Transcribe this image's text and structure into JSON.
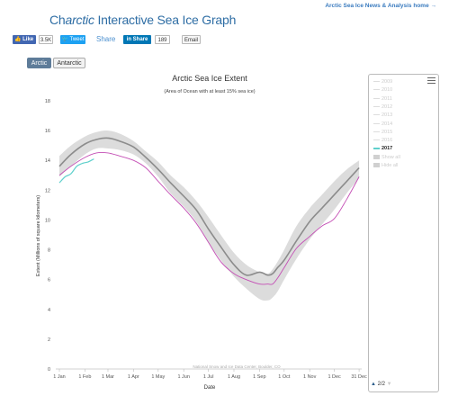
{
  "header": {
    "top_link": "Arctic Sea Ice News & Analysis home →",
    "title_prefix": "Ch",
    "title_italic": "arctic",
    "title_suffix": " Interactive Sea Ice Graph"
  },
  "social": {
    "fb_like": "👍 Like",
    "fb_count": "3.5K",
    "tweet": "🐦 Tweet",
    "share_text": "Share",
    "linkedin": "in Share",
    "linkedin_count": "189",
    "email": "Email"
  },
  "tabs": [
    {
      "label": "Arctic",
      "active": true
    },
    {
      "label": "Antarctic",
      "active": false
    }
  ],
  "legend": {
    "items": [
      "2009",
      "2010",
      "2011",
      "2012",
      "2013",
      "2014",
      "2015",
      "2016",
      "2017"
    ],
    "active": "2017",
    "show_all": "Show all",
    "hide_all": "Hide all",
    "pager": "2/2"
  },
  "chart_data": {
    "type": "line",
    "title": "Arctic Sea Ice Extent",
    "subtitle": "(Area of Ocean with at least 15% sea ice)",
    "xlabel": "Date",
    "ylabel": "Extent (Millions of square kilometers)",
    "credit": "National Snow and Ice Data Center, Boulder, CO",
    "ylim": [
      0,
      18
    ],
    "yticks": [
      0,
      2,
      4,
      6,
      8,
      10,
      12,
      14,
      16,
      18
    ],
    "xlim": [
      1,
      366
    ],
    "xticks": [
      {
        "day": 1,
        "label": "1 Jan"
      },
      {
        "day": 32,
        "label": "1 Feb"
      },
      {
        "day": 60,
        "label": "1 Mar"
      },
      {
        "day": 91,
        "label": "1 Apr"
      },
      {
        "day": 121,
        "label": "1 May"
      },
      {
        "day": 152,
        "label": "1 Jun"
      },
      {
        "day": 182,
        "label": "1 Jul"
      },
      {
        "day": 213,
        "label": "1 Aug"
      },
      {
        "day": 244,
        "label": "1 Sep"
      },
      {
        "day": 274,
        "label": "1 Oct"
      },
      {
        "day": 305,
        "label": "1 Nov"
      },
      {
        "day": 335,
        "label": "1 Dec"
      },
      {
        "day": 365,
        "label": "31 Dec"
      }
    ],
    "grid": false,
    "colors": {
      "median": "#8c8c8c",
      "band": "#dcdcdc",
      "year_2016": "#c44fb5",
      "year_2017": "#5fd0cc"
    },
    "band": {
      "x": [
        1,
        15,
        32,
        46,
        60,
        74,
        91,
        106,
        121,
        136,
        152,
        167,
        182,
        197,
        213,
        228,
        244,
        254,
        260,
        266,
        274,
        289,
        305,
        320,
        335,
        350,
        365
      ],
      "upper": [
        14.3,
        15.0,
        15.6,
        15.9,
        16.0,
        15.8,
        15.3,
        14.6,
        13.9,
        13.0,
        12.2,
        11.3,
        10.2,
        9.0,
        7.8,
        7.0,
        6.5,
        6.4,
        6.7,
        7.2,
        8.0,
        9.6,
        10.8,
        11.7,
        12.6,
        13.4,
        14.0
      ],
      "lower": [
        12.9,
        13.6,
        14.4,
        14.8,
        14.8,
        14.7,
        14.4,
        13.8,
        12.9,
        11.8,
        10.9,
        9.9,
        8.5,
        7.3,
        6.2,
        5.4,
        4.7,
        4.6,
        4.8,
        5.2,
        6.0,
        7.4,
        8.7,
        9.7,
        10.7,
        11.8,
        12.8
      ]
    },
    "series": [
      {
        "name": "Median",
        "x": [
          1,
          15,
          32,
          46,
          60,
          74,
          91,
          106,
          121,
          136,
          152,
          167,
          182,
          197,
          213,
          228,
          244,
          254,
          260,
          266,
          274,
          289,
          305,
          320,
          335,
          350,
          365
        ],
        "values": [
          13.6,
          14.4,
          15.1,
          15.4,
          15.5,
          15.3,
          14.9,
          14.2,
          13.4,
          12.5,
          11.6,
          10.7,
          9.4,
          8.2,
          7.0,
          6.3,
          6.5,
          6.3,
          6.4,
          6.8,
          7.3,
          8.6,
          9.9,
          10.8,
          11.7,
          12.6,
          13.5
        ]
      },
      {
        "name": "2016",
        "x": [
          1,
          15,
          32,
          46,
          60,
          74,
          91,
          106,
          121,
          136,
          152,
          167,
          182,
          197,
          213,
          228,
          244,
          254,
          260,
          266,
          274,
          289,
          305,
          320,
          335,
          350,
          365
        ],
        "values": [
          13.0,
          13.6,
          14.2,
          14.5,
          14.5,
          14.3,
          14.0,
          13.5,
          12.6,
          11.7,
          10.8,
          9.8,
          8.5,
          7.2,
          6.4,
          6.0,
          5.7,
          5.7,
          5.7,
          6.1,
          6.8,
          8.1,
          8.9,
          9.6,
          10.1,
          11.4,
          12.9
        ]
      },
      {
        "name": "2017",
        "x": [
          1,
          8,
          15,
          22,
          29,
          36,
          43
        ],
        "values": [
          12.5,
          12.9,
          13.1,
          13.6,
          13.8,
          13.9,
          14.1
        ]
      }
    ]
  }
}
